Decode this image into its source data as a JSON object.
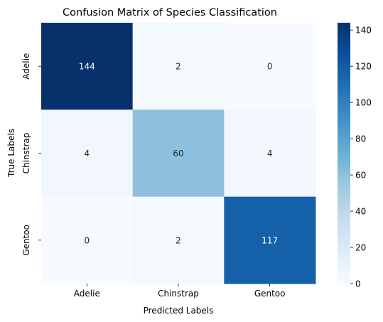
{
  "chart_data": {
    "type": "heatmap",
    "title": "Confusion Matrix of Species Classification",
    "xlabel": "Predicted Labels",
    "ylabel": "True Labels",
    "x_categories": [
      "Adelie",
      "Chinstrap",
      "Gentoo"
    ],
    "y_categories": [
      "Adelie",
      "Chinstrap",
      "Gentoo"
    ],
    "values": [
      [
        144,
        2,
        0
      ],
      [
        4,
        60,
        4
      ],
      [
        0,
        2,
        117
      ]
    ],
    "colorscale": "Blues",
    "vmin": 0,
    "vmax": 144,
    "colorbar_ticks": [
      0,
      20,
      40,
      60,
      80,
      100,
      120,
      140
    ],
    "text_color_light": "#ffffff",
    "text_color_dark": "#262626"
  }
}
